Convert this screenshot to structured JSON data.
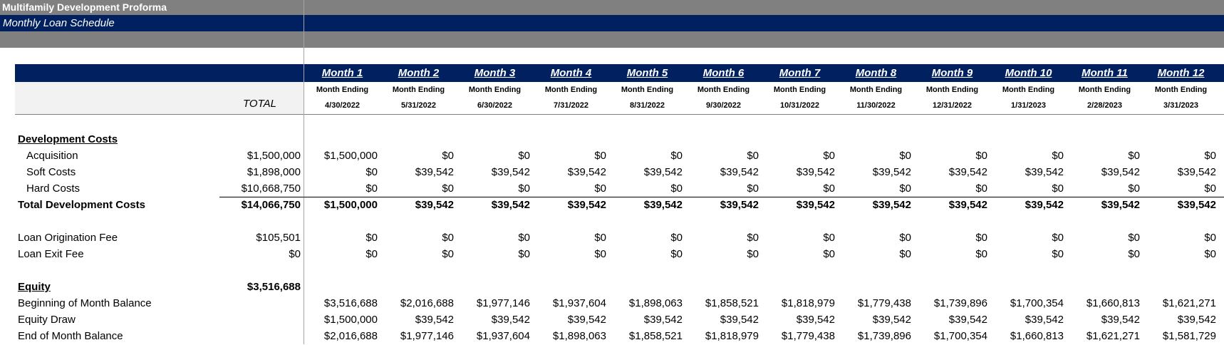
{
  "title": "Multifamily Development Proforma",
  "subtitle": "Monthly Loan Schedule",
  "total_header": "TOTAL",
  "month_ending_label": "Month Ending",
  "months": [
    {
      "label": "Month 1",
      "date": "4/30/2022"
    },
    {
      "label": "Month 2",
      "date": "5/31/2022"
    },
    {
      "label": "Month 3",
      "date": "6/30/2022"
    },
    {
      "label": "Month 4",
      "date": "7/31/2022"
    },
    {
      "label": "Month 5",
      "date": "8/31/2022"
    },
    {
      "label": "Month 6",
      "date": "9/30/2022"
    },
    {
      "label": "Month 7",
      "date": "10/31/2022"
    },
    {
      "label": "Month 8",
      "date": "11/30/2022"
    },
    {
      "label": "Month 9",
      "date": "12/31/2022"
    },
    {
      "label": "Month 10",
      "date": "1/31/2023"
    },
    {
      "label": "Month 11",
      "date": "2/28/2023"
    },
    {
      "label": "Month 12",
      "date": "3/31/2023"
    }
  ],
  "rows": [
    {
      "label": "Development Costs",
      "style": "head",
      "total": "",
      "values": []
    },
    {
      "label": "Acquisition",
      "style": "ind",
      "total": "$1,500,000",
      "values": [
        "$1,500,000",
        "$0",
        "$0",
        "$0",
        "$0",
        "$0",
        "$0",
        "$0",
        "$0",
        "$0",
        "$0",
        "$0"
      ]
    },
    {
      "label": "Soft Costs",
      "style": "ind",
      "total": "$1,898,000",
      "values": [
        "$0",
        "$39,542",
        "$39,542",
        "$39,542",
        "$39,542",
        "$39,542",
        "$39,542",
        "$39,542",
        "$39,542",
        "$39,542",
        "$39,542",
        "$39,542"
      ]
    },
    {
      "label": "Hard Costs",
      "style": "ind",
      "total": "$10,668,750",
      "values": [
        "$0",
        "$0",
        "$0",
        "$0",
        "$0",
        "$0",
        "$0",
        "$0",
        "$0",
        "$0",
        "$0",
        "$0"
      ]
    },
    {
      "label": "Total Development Costs",
      "style": "bold",
      "total": "$14,066,750",
      "values": [
        "$1,500,000",
        "$39,542",
        "$39,542",
        "$39,542",
        "$39,542",
        "$39,542",
        "$39,542",
        "$39,542",
        "$39,542",
        "$39,542",
        "$39,542",
        "$39,542"
      ]
    },
    {
      "label": "",
      "style": "",
      "total": "",
      "values": []
    },
    {
      "label": "Loan Origination Fee",
      "style": "",
      "total": "$105,501",
      "values": [
        "$0",
        "$0",
        "$0",
        "$0",
        "$0",
        "$0",
        "$0",
        "$0",
        "$0",
        "$0",
        "$0",
        "$0"
      ]
    },
    {
      "label": "Loan Exit Fee",
      "style": "",
      "total": "$0",
      "values": [
        "$0",
        "$0",
        "$0",
        "$0",
        "$0",
        "$0",
        "$0",
        "$0",
        "$0",
        "$0",
        "$0",
        "$0"
      ]
    },
    {
      "label": "",
      "style": "",
      "total": "",
      "values": []
    },
    {
      "label": "Equity",
      "style": "head",
      "total": "$3,516,688",
      "total_bold": true,
      "values": []
    },
    {
      "label": "Beginning of Month Balance",
      "style": "",
      "total": "",
      "values": [
        "$3,516,688",
        "$2,016,688",
        "$1,977,146",
        "$1,937,604",
        "$1,898,063",
        "$1,858,521",
        "$1,818,979",
        "$1,779,438",
        "$1,739,896",
        "$1,700,354",
        "$1,660,813",
        "$1,621,271"
      ]
    },
    {
      "label": "Equity Draw",
      "style": "",
      "total": "",
      "values": [
        "$1,500,000",
        "$39,542",
        "$39,542",
        "$39,542",
        "$39,542",
        "$39,542",
        "$39,542",
        "$39,542",
        "$39,542",
        "$39,542",
        "$39,542",
        "$39,542"
      ]
    },
    {
      "label": "End of Month Balance",
      "style": "",
      "total": "",
      "values": [
        "$2,016,688",
        "$1,977,146",
        "$1,937,604",
        "$1,898,063",
        "$1,858,521",
        "$1,818,979",
        "$1,779,438",
        "$1,739,896",
        "$1,700,354",
        "$1,660,813",
        "$1,621,271",
        "$1,581,729"
      ]
    }
  ]
}
